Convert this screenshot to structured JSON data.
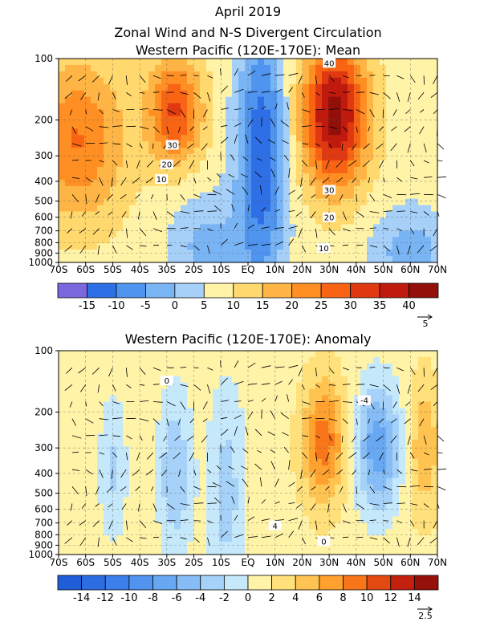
{
  "figure": {
    "title_line1": "April 2019",
    "title_line2": "Zonal Wind and N-S Divergent Circulation"
  },
  "chart_data": [
    {
      "type": "heatmap",
      "title": "Western Pacific (120E-170E): Mean",
      "x_ticks": [
        "70S",
        "60S",
        "50S",
        "40S",
        "30S",
        "20S",
        "10S",
        "EQ",
        "10N",
        "20N",
        "30N",
        "40N",
        "50N",
        "60N",
        "70N"
      ],
      "x_range": [
        -70,
        70
      ],
      "y_ticks": [
        "100",
        "200",
        "300",
        "400",
        "500",
        "600",
        "700",
        "800",
        "900",
        "1000"
      ],
      "y_range_hpa": [
        1000,
        100
      ],
      "y_scale": "log",
      "colorbar": {
        "labels": [
          "-15",
          "-10",
          "-5",
          "0",
          "5",
          "10",
          "15",
          "20",
          "25",
          "30",
          "35",
          "40"
        ],
        "colors": [
          "#7a66dd",
          "#2f6fe6",
          "#4f94ee",
          "#79b4f5",
          "#a6d0f8",
          "#fff3a8",
          "#ffd86e",
          "#ffb545",
          "#ff8f23",
          "#f86414",
          "#e03811",
          "#c01a0e",
          "#93100a"
        ]
      },
      "contour_labels": [
        "30",
        "20",
        "10",
        "40",
        "30",
        "20",
        "10"
      ],
      "vector_reference": "5",
      "jets": [
        {
          "lat": -63,
          "p": 250,
          "value": 25
        },
        {
          "lat": -27,
          "p": 180,
          "value": 30
        },
        {
          "lat": 32,
          "p": 190,
          "value": 42
        },
        {
          "lat": 5,
          "p": 300,
          "value": -10
        }
      ]
    },
    {
      "type": "heatmap",
      "title": "Western Pacific (120E-170E): Anomaly",
      "x_ticks": [
        "70S",
        "60S",
        "50S",
        "40S",
        "30S",
        "20S",
        "10S",
        "EQ",
        "10N",
        "20N",
        "30N",
        "40N",
        "50N",
        "60N",
        "70N"
      ],
      "x_range": [
        -70,
        70
      ],
      "y_ticks": [
        "100",
        "200",
        "300",
        "400",
        "500",
        "600",
        "700",
        "800",
        "900",
        "1000"
      ],
      "y_range_hpa": [
        1000,
        100
      ],
      "y_scale": "log",
      "colorbar": {
        "labels": [
          "-14",
          "-12",
          "-10",
          "-8",
          "-6",
          "-4",
          "-2",
          "0",
          "2",
          "4",
          "6",
          "8",
          "10",
          "12",
          "14"
        ],
        "colors": [
          "#1f5ed8",
          "#2c6ee2",
          "#3b80ea",
          "#5094ef",
          "#68a8f3",
          "#86bdf6",
          "#a6d2f9",
          "#c6e8fb",
          "#fff3a8",
          "#ffe07a",
          "#ffc352",
          "#ffa12e",
          "#f8751a",
          "#e34a12",
          "#c3200d",
          "#96110a"
        ]
      },
      "contour_labels": [
        "0",
        "-4",
        "4",
        "0"
      ],
      "vector_reference": "2.5",
      "anomalies": [
        {
          "lat": 28,
          "p": 280,
          "value": 7
        },
        {
          "lat": 48,
          "p": 300,
          "value": -6
        },
        {
          "lat": -27,
          "p": 400,
          "value": -4
        },
        {
          "lat": -8,
          "p": 500,
          "value": -3
        }
      ]
    }
  ]
}
